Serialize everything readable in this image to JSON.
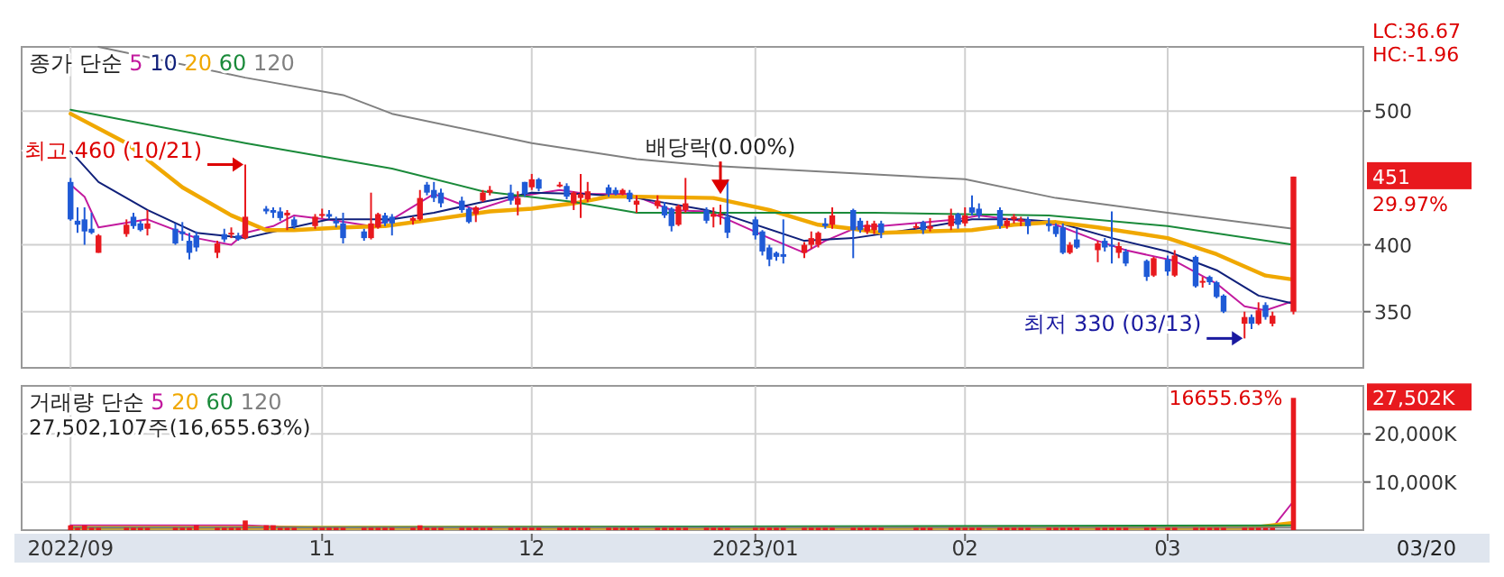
{
  "chart_data": [
    {
      "type": "candlestick",
      "legend": "top left",
      "legend_title": "종가 단순",
      "grid": true,
      "tick_labels": "y",
      "xlim": [
        "2022-09-19",
        "2023-03-30"
      ],
      "xticks": [
        {
          "value": "2022-09-26",
          "label": null
        },
        {
          "value": "2022-11-01",
          "label": null
        },
        {
          "value": "2022-12-01",
          "label": null
        },
        {
          "value": "2023-01-02",
          "label": null
        },
        {
          "value": "2023-02-01",
          "label": null
        },
        {
          "value": "2023-03-02",
          "label": null
        }
      ],
      "ylim": [
        308,
        548
      ],
      "yticks": [
        350,
        400,
        500
      ],
      "x": [
        "2022-09-26",
        "2022-09-27",
        "2022-09-28",
        "2022-09-29",
        "2022-09-30",
        "2022-10-04",
        "2022-10-05",
        "2022-10-06",
        "2022-10-07",
        "2022-10-11",
        "2022-10-12",
        "2022-10-13",
        "2022-10-14",
        "2022-10-17",
        "2022-10-18",
        "2022-10-19",
        "2022-10-20",
        "2022-10-21",
        "2022-10-24",
        "2022-10-25",
        "2022-10-26",
        "2022-10-27",
        "2022-10-28",
        "2022-10-31",
        "2022-11-01",
        "2022-11-02",
        "2022-11-03",
        "2022-11-04",
        "2022-11-07",
        "2022-11-08",
        "2022-11-09",
        "2022-11-10",
        "2022-11-11",
        "2022-11-14",
        "2022-11-15",
        "2022-11-16",
        "2022-11-17",
        "2022-11-18",
        "2022-11-21",
        "2022-11-22",
        "2022-11-23",
        "2022-11-24",
        "2022-11-25",
        "2022-11-28",
        "2022-11-29",
        "2022-11-30",
        "2022-12-01",
        "2022-12-02",
        "2022-12-05",
        "2022-12-06",
        "2022-12-07",
        "2022-12-08",
        "2022-12-09",
        "2022-12-12",
        "2022-12-13",
        "2022-12-14",
        "2022-12-15",
        "2022-12-16",
        "2022-12-19",
        "2022-12-20",
        "2022-12-21",
        "2022-12-22",
        "2022-12-23",
        "2022-12-26",
        "2022-12-27",
        "2022-12-28",
        "2022-12-29",
        "2023-01-02",
        "2023-01-03",
        "2023-01-04",
        "2023-01-05",
        "2023-01-06",
        "2023-01-09",
        "2023-01-10",
        "2023-01-11",
        "2023-01-12",
        "2023-01-13",
        "2023-01-16",
        "2023-01-17",
        "2023-01-18",
        "2023-01-19",
        "2023-01-20",
        "2023-01-25",
        "2023-01-26",
        "2023-01-27",
        "2023-01-30",
        "2023-01-31",
        "2023-02-01",
        "2023-02-02",
        "2023-02-03",
        "2023-02-06",
        "2023-02-07",
        "2023-02-08",
        "2023-02-09",
        "2023-02-10",
        "2023-02-13",
        "2023-02-14",
        "2023-02-15",
        "2023-02-16",
        "2023-02-17",
        "2023-02-20",
        "2023-02-21",
        "2023-02-22",
        "2023-02-23",
        "2023-02-24",
        "2023-02-27",
        "2023-02-28",
        "2023-03-02",
        "2023-03-03",
        "2023-03-06",
        "2023-03-07",
        "2023-03-08",
        "2023-03-09",
        "2023-03-10",
        "2023-03-13",
        "2023-03-14",
        "2023-03-15",
        "2023-03-16",
        "2023-03-17",
        "2023-03-20"
      ],
      "ohlc": [
        [
          447,
          450,
          418,
          419
        ],
        [
          418,
          428,
          409,
          415
        ],
        [
          419,
          428,
          400,
          410
        ],
        [
          412,
          424,
          408,
          409
        ],
        [
          394,
          408,
          394,
          407
        ],
        [
          408,
          419,
          406,
          415
        ],
        [
          421,
          424,
          412,
          414
        ],
        [
          416,
          418,
          410,
          411
        ],
        [
          412,
          426,
          407,
          416
        ],
        [
          412,
          416,
          400,
          401
        ],
        [
          410,
          417,
          403,
          408
        ],
        [
          403,
          409,
          389,
          394
        ],
        [
          407,
          410,
          395,
          398
        ],
        [
          394,
          403,
          390,
          401
        ],
        [
          408,
          412,
          402,
          404
        ],
        [
          408,
          413,
          405,
          409
        ],
        [
          407,
          409,
          403,
          404
        ],
        [
          405,
          460,
          404,
          421
        ],
        [
          427,
          429,
          423,
          425
        ],
        [
          426,
          428,
          420,
          424
        ],
        [
          425,
          428,
          418,
          420
        ],
        [
          422,
          426,
          411,
          424
        ],
        [
          419,
          421,
          412,
          414
        ],
        [
          414,
          423,
          412,
          421
        ],
        [
          422,
          427,
          420,
          423
        ],
        [
          423,
          426,
          419,
          421
        ],
        [
          418,
          421,
          413,
          416
        ],
        [
          416,
          424,
          401,
          405
        ],
        [
          410,
          412,
          403,
          405
        ],
        [
          405,
          439,
          404,
          416
        ],
        [
          413,
          424,
          412,
          423
        ],
        [
          422,
          424,
          414,
          416
        ],
        [
          421,
          423,
          407,
          416
        ],
        [
          418,
          421,
          415,
          420
        ],
        [
          419,
          441,
          418,
          435
        ],
        [
          445,
          447,
          437,
          439
        ],
        [
          441,
          447,
          432,
          435
        ],
        [
          439,
          442,
          428,
          431
        ],
        [
          433,
          436,
          424,
          426
        ],
        [
          427,
          428,
          416,
          417
        ],
        [
          423,
          429,
          417,
          428
        ],
        [
          433,
          441,
          432,
          439
        ],
        [
          439,
          444,
          437,
          441
        ],
        [
          439,
          445,
          430,
          433
        ],
        [
          430,
          440,
          422,
          435
        ],
        [
          447,
          447,
          436,
          438
        ],
        [
          443,
          453,
          441,
          449
        ],
        [
          449,
          450,
          440,
          442
        ],
        [
          444,
          447,
          443,
          445
        ],
        [
          444,
          446,
          434,
          436
        ],
        [
          431,
          440,
          426,
          439
        ],
        [
          435,
          453,
          420,
          438
        ],
        [
          434,
          447,
          432,
          440
        ],
        [
          443,
          445,
          436,
          438
        ],
        [
          441,
          443,
          437,
          438
        ],
        [
          438,
          442,
          437,
          441
        ],
        [
          439,
          441,
          432,
          434
        ],
        [
          430,
          437,
          424,
          433
        ],
        [
          429,
          437,
          427,
          433
        ],
        [
          429,
          432,
          420,
          422
        ],
        [
          427,
          428,
          410,
          414
        ],
        [
          415,
          430,
          414,
          429
        ],
        [
          426,
          450,
          424,
          431
        ],
        [
          426,
          428,
          416,
          418
        ],
        [
          421,
          428,
          413,
          423
        ],
        [
          422,
          430,
          415,
          423
        ],
        [
          421,
          449,
          405,
          409
        ],
        [
          419,
          421,
          404,
          407
        ],
        [
          410,
          411,
          392,
          395
        ],
        [
          398,
          400,
          384,
          389
        ],
        [
          394,
          395,
          388,
          391
        ],
        [
          393,
          419,
          386,
          391
        ],
        [
          394,
          402,
          390,
          400
        ],
        [
          400,
          410,
          397,
          405
        ],
        [
          400,
          410,
          398,
          409
        ],
        [
          416,
          420,
          412,
          414
        ],
        [
          415,
          428,
          412,
          422
        ],
        [
          426,
          427,
          390,
          411
        ],
        [
          418,
          420,
          409,
          411
        ],
        [
          410,
          418,
          408,
          415
        ],
        [
          411,
          418,
          408,
          416
        ],
        [
          416,
          418,
          405,
          409
        ],
        [
          413,
          416,
          412,
          414
        ],
        [
          417,
          418,
          408,
          411
        ],
        [
          412,
          420,
          410,
          414
        ],
        [
          414,
          427,
          411,
          422
        ],
        [
          423,
          424,
          412,
          415
        ],
        [
          416,
          428,
          414,
          422
        ],
        [
          428,
          437,
          422,
          424
        ],
        [
          427,
          431,
          420,
          422
        ],
        [
          426,
          428,
          412,
          414
        ],
        [
          414,
          420,
          412,
          418
        ],
        [
          419,
          423,
          416,
          421
        ],
        [
          418,
          421,
          414,
          419
        ],
        [
          419,
          421,
          408,
          414
        ],
        [
          416,
          420,
          410,
          414
        ],
        [
          414,
          416,
          406,
          408
        ],
        [
          413,
          416,
          393,
          394
        ],
        [
          394,
          402,
          393,
          400
        ],
        [
          404,
          412,
          397,
          398
        ],
        [
          396,
          403,
          387,
          401
        ],
        [
          403,
          405,
          395,
          398
        ],
        [
          400,
          425,
          386,
          399
        ],
        [
          394,
          402,
          390,
          399
        ],
        [
          395,
          397,
          384,
          386
        ],
        [
          388,
          389,
          373,
          376
        ],
        [
          377,
          391,
          376,
          390
        ],
        [
          389,
          392,
          377,
          380
        ],
        [
          377,
          396,
          376,
          392
        ],
        [
          391,
          392,
          368,
          369
        ],
        [
          372,
          376,
          368,
          373
        ],
        [
          376,
          377,
          370,
          372
        ],
        [
          372,
          373,
          360,
          361
        ],
        [
          362,
          363,
          349,
          350
        ],
        [
          341,
          350,
          330,
          346
        ],
        [
          346,
          348,
          337,
          341
        ],
        [
          341,
          357,
          340,
          351
        ],
        [
          355,
          357,
          344,
          346
        ],
        [
          341,
          350,
          339,
          347
        ],
        [
          350,
          451,
          348,
          451
        ]
      ],
      "series": [
        {
          "type": "line",
          "name": "5",
          "color": "#c21a9e",
          "x": [
            "2022-09-26",
            "2022-09-28",
            "2022-09-30",
            "2022-10-07",
            "2022-10-14",
            "2022-10-19",
            "2022-10-21",
            "2022-10-25",
            "2022-10-28",
            "2022-11-03",
            "2022-11-08",
            "2022-11-11",
            "2022-11-17",
            "2022-11-23",
            "2022-11-29",
            "2022-12-05",
            "2022-12-09",
            "2022-12-15",
            "2022-12-21",
            "2022-12-26",
            "2022-12-29",
            "2023-01-04",
            "2023-01-09",
            "2023-01-12",
            "2023-01-17",
            "2023-01-20",
            "2023-01-31",
            "2023-02-03",
            "2023-02-09",
            "2023-02-14",
            "2023-02-20",
            "2023-02-24",
            "2023-03-03",
            "2023-03-09",
            "2023-03-13",
            "2023-03-16",
            "2023-03-20"
          ],
          "values": [
            445,
            436,
            413,
            419,
            405,
            400,
            409,
            414,
            422,
            418,
            414,
            419,
            438,
            426,
            436,
            441,
            438,
            438,
            426,
            425,
            419,
            405,
            394,
            403,
            414,
            414,
            419,
            422,
            418,
            415,
            403,
            396,
            388,
            371,
            354,
            351,
            358
          ]
        },
        {
          "type": "line",
          "name": "10",
          "color": "#10207a",
          "x": [
            "2022-09-26",
            "2022-09-30",
            "2022-10-07",
            "2022-10-14",
            "2022-10-21",
            "2022-10-26",
            "2022-11-02",
            "2022-11-11",
            "2022-11-17",
            "2022-11-24",
            "2022-12-01",
            "2022-12-09",
            "2022-12-16",
            "2022-12-26",
            "2022-12-29",
            "2023-01-09",
            "2023-01-16",
            "2023-01-25",
            "2023-02-02",
            "2023-02-09",
            "2023-02-14",
            "2023-02-22",
            "2023-03-02",
            "2023-03-09",
            "2023-03-15",
            "2023-03-20"
          ],
          "values": [
            470,
            447,
            426,
            409,
            405,
            411,
            419,
            419,
            424,
            432,
            439,
            438,
            435,
            426,
            422,
            403,
            405,
            412,
            419,
            419,
            417,
            405,
            395,
            381,
            362,
            356
          ]
        },
        {
          "type": "line",
          "name": "20",
          "color": "#f0a800",
          "x": [
            "2022-09-26",
            "2022-10-04",
            "2022-10-12",
            "2022-10-19",
            "2022-10-24",
            "2022-10-28",
            "2022-11-04",
            "2022-11-10",
            "2022-11-17",
            "2022-11-25",
            "2022-12-01",
            "2022-12-07",
            "2022-12-12",
            "2022-12-16",
            "2022-12-27",
            "2023-01-04",
            "2023-01-11",
            "2023-01-16",
            "2023-01-20",
            "2023-02-02",
            "2023-02-08",
            "2023-02-14",
            "2023-02-20",
            "2023-03-02",
            "2023-03-09",
            "2023-03-16",
            "2023-03-20"
          ],
          "values": [
            498,
            476,
            443,
            422,
            411,
            411,
            413,
            414,
            419,
            425,
            427,
            431,
            436,
            436,
            435,
            426,
            415,
            412,
            409,
            411,
            415,
            417,
            413,
            405,
            393,
            377,
            374
          ]
        },
        {
          "type": "line",
          "name": "60",
          "color": "#1a8a3a",
          "x": [
            "2022-09-26",
            "2022-10-21",
            "2022-11-11",
            "2022-11-24",
            "2022-12-07",
            "2022-12-16",
            "2022-12-29",
            "2023-01-19",
            "2023-02-13",
            "2023-03-02",
            "2023-03-20"
          ],
          "values": [
            501,
            476,
            457,
            440,
            432,
            424,
            424,
            424,
            422,
            414,
            400
          ]
        },
        {
          "type": "line",
          "name": "120",
          "color": "#808080",
          "x": [
            "2022-09-30",
            "2022-10-21",
            "2022-11-04",
            "2022-11-11",
            "2022-12-01",
            "2022-12-16",
            "2022-12-27",
            "2023-02-01",
            "2023-02-14",
            "2023-03-02",
            "2023-03-20"
          ],
          "values": [
            548,
            525,
            512,
            498,
            476,
            464,
            459,
            449,
            435,
            424,
            412
          ]
        }
      ],
      "annotations": [
        {
          "text": "최고 460 (10/21)",
          "x": "2022-10-21",
          "y": 460
        },
        {
          "text": "배당락(0.00%)",
          "x": "2022-12-28",
          "y": 438
        },
        {
          "text": "최저 330 (03/13)",
          "x": "2023-03-13",
          "y": 330
        },
        "LC:36.67",
        "HC:-1.96",
        "451",
        "29.97%"
      ]
    },
    {
      "type": "bar",
      "legend": "top left",
      "legend_title": "거래량 단순",
      "grid": true,
      "xlim": [
        "2022-09-19",
        "2023-03-30"
      ],
      "xticks": [
        {
          "value": "2022-09-26",
          "label": "2022/09"
        },
        {
          "value": "2022-11-01",
          "label": "11"
        },
        {
          "value": "2022-12-01",
          "label": "12"
        },
        {
          "value": "2023-01-02",
          "label": "2023/01"
        },
        {
          "value": "2023-02-01",
          "label": "02"
        },
        {
          "value": "2023-03-02",
          "label": "03"
        }
      ],
      "ylim": [
        0,
        30000
      ],
      "yticks": [
        {
          "value": 10000,
          "label": "10,000K"
        },
        {
          "value": 20000,
          "label": "20,000K"
        }
      ],
      "x": [
        "2022-09-26",
        "2022-09-27",
        "2022-09-28",
        "2022-09-29",
        "2022-09-30",
        "2022-10-04",
        "2022-10-05",
        "2022-10-06",
        "2022-10-07",
        "2022-10-11",
        "2022-10-12",
        "2022-10-13",
        "2022-10-14",
        "2022-10-17",
        "2022-10-18",
        "2022-10-19",
        "2022-10-20",
        "2022-10-21",
        "2022-10-24",
        "2022-10-25",
        "2022-10-26",
        "2022-10-27",
        "2022-10-28",
        "2022-10-31",
        "2022-11-01",
        "2022-11-02",
        "2022-11-03",
        "2022-11-04",
        "2022-11-07",
        "2022-11-08",
        "2022-11-09",
        "2022-11-10",
        "2022-11-11",
        "2022-11-14",
        "2022-11-15",
        "2022-11-16",
        "2022-11-17",
        "2022-11-18",
        "2022-11-21",
        "2022-11-22",
        "2022-11-23",
        "2022-11-24",
        "2022-11-25",
        "2022-11-28",
        "2022-11-29",
        "2022-11-30",
        "2022-12-01",
        "2022-12-02",
        "2022-12-05",
        "2022-12-06",
        "2022-12-07",
        "2022-12-08",
        "2022-12-09",
        "2022-12-12",
        "2022-12-13",
        "2022-12-14",
        "2022-12-15",
        "2022-12-16",
        "2022-12-19",
        "2022-12-20",
        "2022-12-21",
        "2022-12-22",
        "2022-12-23",
        "2022-12-26",
        "2022-12-27",
        "2022-12-28",
        "2022-12-29",
        "2023-01-02",
        "2023-01-03",
        "2023-01-04",
        "2023-01-05",
        "2023-01-06",
        "2023-01-09",
        "2023-01-10",
        "2023-01-11",
        "2023-01-12",
        "2023-01-13",
        "2023-01-16",
        "2023-01-17",
        "2023-01-18",
        "2023-01-19",
        "2023-01-20",
        "2023-01-25",
        "2023-01-26",
        "2023-01-27",
        "2023-01-30",
        "2023-01-31",
        "2023-02-01",
        "2023-02-02",
        "2023-02-03",
        "2023-02-06",
        "2023-02-07",
        "2023-02-08",
        "2023-02-09",
        "2023-02-10",
        "2023-02-13",
        "2023-02-14",
        "2023-02-15",
        "2023-02-16",
        "2023-02-17",
        "2023-02-20",
        "2023-02-21",
        "2023-02-22",
        "2023-02-23",
        "2023-02-24",
        "2023-02-27",
        "2023-02-28",
        "2023-03-02",
        "2023-03-03",
        "2023-03-06",
        "2023-03-07",
        "2023-03-08",
        "2023-03-09",
        "2023-03-10",
        "2023-03-13",
        "2023-03-14",
        "2023-03-15",
        "2023-03-16",
        "2023-03-17",
        "2023-03-20"
      ],
      "series": [
        {
          "type": "bar",
          "color": "#e8191e",
          "values": [
            1000,
            500,
            1000,
            500,
            500,
            500,
            500,
            500,
            500,
            500,
            500,
            500,
            1000,
            500,
            500,
            500,
            500,
            2000,
            1000,
            1000,
            500,
            500,
            500,
            500,
            500,
            500,
            500,
            500,
            500,
            500,
            500,
            500,
            500,
            500,
            1000,
            500,
            500,
            500,
            500,
            500,
            500,
            500,
            500,
            500,
            500,
            500,
            500,
            500,
            500,
            500,
            500,
            500,
            500,
            500,
            500,
            500,
            500,
            500,
            500,
            500,
            500,
            500,
            500,
            500,
            500,
            500,
            500,
            500,
            500,
            500,
            500,
            500,
            500,
            500,
            500,
            500,
            500,
            500,
            500,
            500,
            500,
            500,
            500,
            500,
            500,
            500,
            500,
            500,
            500,
            500,
            500,
            500,
            500,
            500,
            500,
            500,
            500,
            500,
            500,
            500,
            500,
            500,
            500,
            500,
            500,
            500,
            500,
            500,
            500,
            500,
            500,
            500,
            500,
            500,
            500,
            500,
            500,
            500,
            500,
            27502
          ]
        },
        {
          "type": "line",
          "name": "5",
          "color": "#c21a9e",
          "x": [
            "2022-09-26",
            "2022-10-21",
            "2022-10-31",
            "2023-03-17",
            "2023-03-20"
          ],
          "values": [
            1000,
            1000,
            500,
            500,
            6000
          ]
        },
        {
          "type": "line",
          "name": "20",
          "color": "#f0a800",
          "x": [
            "2022-09-26",
            "2023-03-14",
            "2023-03-20"
          ],
          "values": [
            500,
            500,
            1500
          ]
        },
        {
          "type": "line",
          "name": "60",
          "color": "#1a8a3a",
          "x": [
            "2022-09-26",
            "2023-03-20"
          ],
          "values": [
            500,
            1000
          ]
        },
        {
          "type": "line",
          "name": "120",
          "color": "#808080",
          "x": [
            "2022-09-26",
            "2023-03-20"
          ],
          "values": [
            500,
            500
          ]
        }
      ],
      "annotations": [
        "27,502,107주(16,655.63%)",
        "27,502K",
        "16655.63%",
        "03/20"
      ]
    }
  ]
}
